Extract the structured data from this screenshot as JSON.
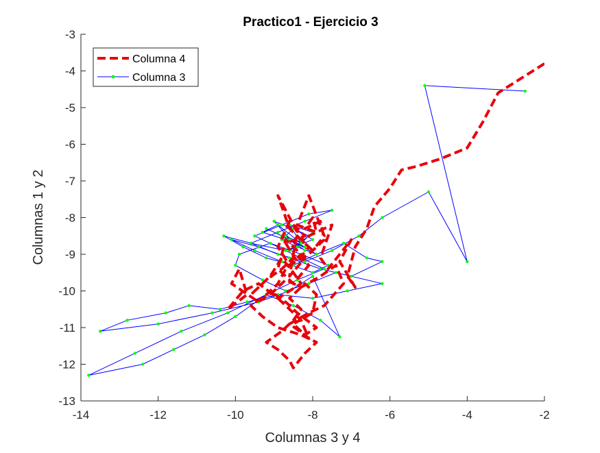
{
  "chart_data": {
    "type": "line",
    "title": "Practico1 - Ejercicio 3",
    "xlabel": "Columnas 3 y 4",
    "ylabel": "Columnas 1 y 2",
    "xlim": [
      -14,
      -2
    ],
    "ylim": [
      -13,
      -3
    ],
    "xticks": [
      -14,
      -12,
      -10,
      -8,
      -6,
      -4,
      -2
    ],
    "yticks": [
      -13,
      -12,
      -11,
      -10,
      -9,
      -8,
      -7,
      -6,
      -5,
      -4,
      -3
    ],
    "xtick_labels": [
      "-14",
      "-12",
      "-10",
      "-8",
      "-6",
      "-4",
      "-2"
    ],
    "ytick_labels": [
      "-13",
      "-12",
      "-11",
      "-10",
      "-9",
      "-8",
      "-7",
      "-6",
      "-5",
      "-4",
      "-3"
    ],
    "grid": false,
    "legend_position": "top-left",
    "series": [
      {
        "name": "Columna 4",
        "style": "dashed",
        "color": "#e8000b",
        "x": [
          -2.0,
          -2.6,
          -3.2,
          -3.6,
          -4.0,
          -4.7,
          -5.3,
          -5.7,
          -6.0,
          -6.4,
          -6.6,
          -6.9,
          -7.1,
          -6.9,
          -7.3,
          -7.0,
          -7.6,
          -7.8,
          -7.5,
          -8.3,
          -8.0,
          -7.7,
          -8.1,
          -8.4,
          -7.9,
          -8.0,
          -8.2,
          -7.8,
          -7.7,
          -8.1,
          -8.6,
          -8.9,
          -8.6,
          -8.2,
          -8.7,
          -8.4,
          -8.1,
          -8.6,
          -8.9,
          -8.4,
          -8.6,
          -8.2,
          -8.7,
          -8.9,
          -8.5,
          -8.1,
          -8.4,
          -8.8,
          -9.2,
          -9.6,
          -9.1,
          -8.8,
          -8.5,
          -8.3,
          -8.9,
          -9.4,
          -9.8,
          -10.2,
          -9.7,
          -9.9,
          -10.1,
          -9.4,
          -9.0,
          -8.7,
          -8.3,
          -7.8,
          -7.4,
          -7.2,
          -7.7,
          -8.1,
          -8.6,
          -8.2,
          -7.9,
          -8.4,
          -8.7,
          -9.1,
          -8.7,
          -8.3,
          -8.1,
          -8.5,
          -8.0,
          -7.9,
          -8.2,
          -8.6,
          -8.3,
          -8.5,
          -8.8,
          -9.2,
          -8.9,
          -8.6,
          -8.5,
          -8.2,
          -7.9,
          -8.3,
          -8.9,
          -9.3,
          -9.6,
          -9.2,
          -8.9,
          -8.7,
          -8.3
        ],
        "y": [
          -3.8,
          -4.2,
          -4.6,
          -5.4,
          -6.1,
          -6.4,
          -6.6,
          -6.7,
          -7.2,
          -7.7,
          -8.3,
          -8.8,
          -9.6,
          -9.9,
          -9.2,
          -8.6,
          -9.4,
          -9.1,
          -8.2,
          -8.6,
          -8.9,
          -8.5,
          -7.4,
          -8.2,
          -8.4,
          -8.0,
          -8.3,
          -8.1,
          -8.6,
          -9.0,
          -9.3,
          -8.8,
          -8.1,
          -8.5,
          -8.7,
          -9.2,
          -8.8,
          -8.3,
          -7.4,
          -8.4,
          -9.6,
          -9.1,
          -8.6,
          -9.4,
          -9.8,
          -9.3,
          -9.0,
          -9.4,
          -9.7,
          -10.1,
          -9.6,
          -9.1,
          -9.5,
          -9.8,
          -10.2,
          -9.8,
          -10.0,
          -10.5,
          -10.1,
          -9.4,
          -9.8,
          -10.3,
          -10.0,
          -9.7,
          -9.9,
          -9.6,
          -9.3,
          -9.8,
          -10.4,
          -10.6,
          -10.9,
          -11.2,
          -11.0,
          -10.6,
          -10.3,
          -10.0,
          -10.4,
          -10.8,
          -11.3,
          -10.9,
          -10.6,
          -10.1,
          -9.8,
          -10.2,
          -10.5,
          -10.8,
          -11.1,
          -11.4,
          -11.6,
          -11.9,
          -12.1,
          -11.7,
          -11.4,
          -11.2,
          -11.0,
          -10.7,
          -10.4,
          -10.1,
          -9.8,
          -9.4,
          -9.0
        ]
      },
      {
        "name": "Columna 3",
        "style": "solid",
        "color": "#0000ff",
        "marker_color": "#00ff00",
        "x": [
          -2.5,
          -5.1,
          -4.0,
          -5.0,
          -6.2,
          -6.8,
          -7.5,
          -8.2,
          -8.9,
          -9.6,
          -10.3,
          -9.8,
          -9.2,
          -8.5,
          -7.9,
          -7.2,
          -6.6,
          -6.2,
          -7.0,
          -7.8,
          -8.6,
          -9.4,
          -10.1,
          -9.5,
          -8.8,
          -8.0,
          -7.6,
          -8.3,
          -9.1,
          -9.9,
          -10.0,
          -9.3,
          -8.7,
          -8.1,
          -7.4,
          -6.2,
          -7.1,
          -8.0,
          -8.9,
          -9.7,
          -10.4,
          -11.2,
          -11.8,
          -12.8,
          -13.5,
          -12.0,
          -10.6,
          -9.4,
          -8.6,
          -8.0,
          -7.3,
          -7.8,
          -8.5,
          -9.2,
          -10.0,
          -10.8,
          -11.6,
          -12.4,
          -13.8,
          -12.6,
          -11.4,
          -10.2,
          -9.2,
          -8.4,
          -7.7,
          -8.3,
          -8.9,
          -9.5,
          -8.8,
          -8.1,
          -7.5,
          -8.2,
          -8.9,
          -9.6,
          -8.7,
          -8.0,
          -8.5,
          -9.0,
          -8.4,
          -7.9,
          -8.6,
          -9.2,
          -8.8,
          -8.2,
          -8.7,
          -9.3,
          -8.9,
          -8.3,
          -8.6,
          -8.1,
          -8.5,
          -8.8,
          -8.4,
          -8.0,
          -8.6,
          -8.3,
          -8.7,
          -8.2
        ],
        "y": [
          -4.55,
          -4.4,
          -9.2,
          -7.3,
          -8.0,
          -8.5,
          -8.9,
          -9.2,
          -9.0,
          -8.7,
          -8.5,
          -8.8,
          -9.1,
          -9.3,
          -9.0,
          -8.7,
          -9.1,
          -9.2,
          -9.6,
          -9.4,
          -9.1,
          -8.8,
          -8.6,
          -8.9,
          -9.2,
          -9.5,
          -9.3,
          -9.0,
          -8.7,
          -9.0,
          -9.3,
          -9.7,
          -10.0,
          -9.8,
          -9.5,
          -9.8,
          -10.0,
          -10.2,
          -10.1,
          -10.3,
          -10.5,
          -10.4,
          -10.6,
          -10.8,
          -11.1,
          -10.9,
          -10.6,
          -10.3,
          -10.0,
          -9.6,
          -11.25,
          -10.8,
          -10.4,
          -10.1,
          -10.7,
          -11.2,
          -11.6,
          -12.0,
          -12.3,
          -11.7,
          -11.1,
          -10.6,
          -10.1,
          -9.7,
          -9.4,
          -9.1,
          -8.8,
          -8.5,
          -8.2,
          -7.9,
          -7.8,
          -8.1,
          -8.4,
          -8.7,
          -8.9,
          -8.6,
          -8.3,
          -8.1,
          -8.8,
          -9.0,
          -8.6,
          -8.3,
          -8.5,
          -8.8,
          -8.6,
          -8.4,
          -8.2,
          -8.7,
          -8.9,
          -8.5,
          -8.3,
          -8.6,
          -8.8,
          -8.4,
          -8.2,
          -8.7,
          -8.5,
          -8.9
        ]
      }
    ]
  }
}
